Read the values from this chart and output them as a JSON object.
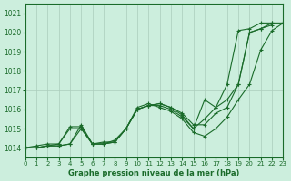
{
  "xlabel": "Graphe pression niveau de la mer (hPa)",
  "ylabel": "",
  "bg_color": "#cceedd",
  "grid_color": "#aaccbb",
  "line_color": "#1a6b2a",
  "xlim": [
    0,
    23
  ],
  "ylim": [
    1013.5,
    1021.5
  ],
  "yticks": [
    1014,
    1015,
    1016,
    1017,
    1018,
    1019,
    1020,
    1021
  ],
  "xticks": [
    0,
    1,
    2,
    3,
    4,
    5,
    6,
    7,
    8,
    9,
    10,
    11,
    12,
    13,
    14,
    15,
    16,
    17,
    18,
    19,
    20,
    21,
    22,
    23
  ],
  "series": [
    {
      "x": [
        0,
        1,
        2,
        3,
        4,
        5,
        6,
        7,
        8,
        9,
        10,
        11,
        12,
        13,
        14,
        15,
        16,
        17,
        18,
        19,
        20,
        21,
        22,
        23
      ],
      "y": [
        1014.0,
        1014.0,
        1014.1,
        1014.1,
        1014.2,
        1015.0,
        1014.2,
        1014.2,
        1014.3,
        1015.0,
        1016.0,
        1016.2,
        1016.3,
        1016.1,
        1015.8,
        1015.2,
        1015.2,
        1015.8,
        1016.1,
        1017.3,
        1020.0,
        1020.2,
        1020.5,
        1020.5
      ]
    },
    {
      "x": [
        0,
        1,
        2,
        3,
        4,
        5,
        6,
        7,
        8,
        9,
        10,
        11,
        12,
        13,
        14,
        15,
        16,
        17,
        18,
        19,
        20,
        21,
        22,
        23
      ],
      "y": [
        1014.0,
        1014.0,
        1014.1,
        1014.1,
        1014.2,
        1015.2,
        1014.2,
        1014.3,
        1014.3,
        1015.0,
        1016.1,
        1016.3,
        1016.1,
        1015.9,
        1015.5,
        1014.8,
        1014.6,
        1015.0,
        1015.6,
        1016.5,
        1017.3,
        1019.1,
        1020.1,
        1020.5
      ]
    },
    {
      "x": [
        0,
        1,
        2,
        3,
        4,
        5,
        6,
        7,
        8,
        9,
        10,
        11,
        12,
        13,
        14,
        15,
        16,
        17,
        18,
        19,
        20,
        21,
        22
      ],
      "y": [
        1014.0,
        1014.0,
        1014.1,
        1014.2,
        1015.1,
        1015.1,
        1014.2,
        1014.2,
        1014.4,
        1015.0,
        1016.0,
        1016.2,
        1016.3,
        1016.1,
        1015.7,
        1015.0,
        1016.5,
        1016.1,
        1017.3,
        1020.1,
        1020.2,
        1020.5,
        1020.5
      ]
    },
    {
      "x": [
        0,
        1,
        2,
        3,
        4,
        5,
        6,
        7,
        8,
        9,
        10,
        11,
        12,
        13,
        14,
        15,
        16,
        17,
        18,
        19,
        20,
        21,
        22
      ],
      "y": [
        1014.0,
        1014.1,
        1014.2,
        1014.2,
        1015.0,
        1015.0,
        1014.2,
        1014.2,
        1014.3,
        1015.0,
        1016.0,
        1016.2,
        1016.2,
        1016.0,
        1015.6,
        1015.0,
        1015.5,
        1016.1,
        1016.5,
        1017.3,
        1020.0,
        1020.2,
        1020.4
      ]
    }
  ]
}
